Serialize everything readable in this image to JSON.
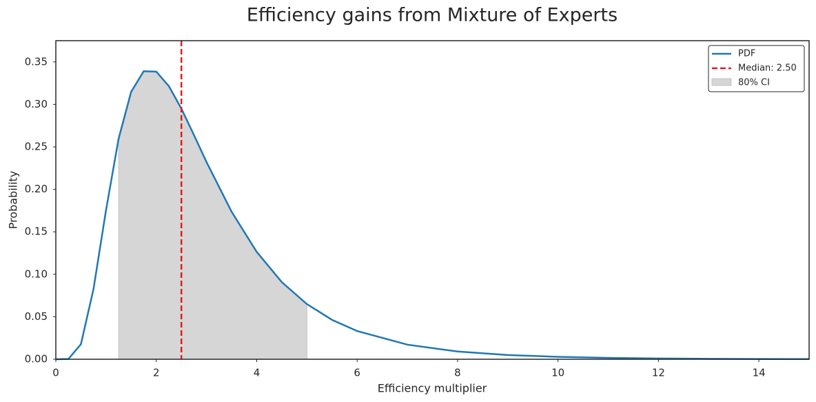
{
  "chart_data": {
    "type": "line",
    "title": "Efficiency gains from Mixture of Experts",
    "xlabel": "Efficiency multiplier",
    "ylabel": "Probability",
    "x": [
      0,
      0.25,
      0.5,
      0.75,
      1,
      1.25,
      1.5,
      1.75,
      2,
      2.25,
      2.5,
      2.75,
      3,
      3.5,
      4,
      4.5,
      5,
      5.5,
      6,
      7,
      8,
      9,
      10,
      11,
      12,
      13,
      14,
      15
    ],
    "series": [
      {
        "name": "PDF",
        "color": "#1f77b4",
        "values": [
          0,
          0.0003,
          0.0177,
          0.0826,
          0.1757,
          0.2596,
          0.3148,
          0.3391,
          0.3386,
          0.3216,
          0.295,
          0.264,
          0.2322,
          0.1737,
          0.1264,
          0.0908,
          0.0649,
          0.0464,
          0.0332,
          0.0172,
          0.0091,
          0.005,
          0.0028,
          0.0016,
          0.0009,
          0.0005,
          0.0003,
          0.0002
        ]
      }
    ],
    "median": {
      "name": "Median: 2.50",
      "value": 2.5,
      "color": "#e41a1c"
    },
    "interval": {
      "name": "80% CI",
      "range": [
        1.25,
        5
      ],
      "color": "#d6d6d6"
    },
    "xlim": [
      0,
      15
    ],
    "xticks": [
      0,
      2,
      4,
      6,
      8,
      10,
      12,
      14
    ],
    "ylim": [
      0,
      0.375
    ],
    "yticks": [
      {
        "value": 0,
        "label": "0.00"
      },
      {
        "value": 0.05,
        "label": "0.05"
      },
      {
        "value": 0.1,
        "label": "0.10"
      },
      {
        "value": 0.15,
        "label": "0.15"
      },
      {
        "value": 0.2,
        "label": "0.20"
      },
      {
        "value": 0.25,
        "label": "0.25"
      },
      {
        "value": 0.3,
        "label": "0.30"
      },
      {
        "value": 0.35,
        "label": "0.35"
      }
    ],
    "grid": false,
    "legend": "upper right"
  }
}
